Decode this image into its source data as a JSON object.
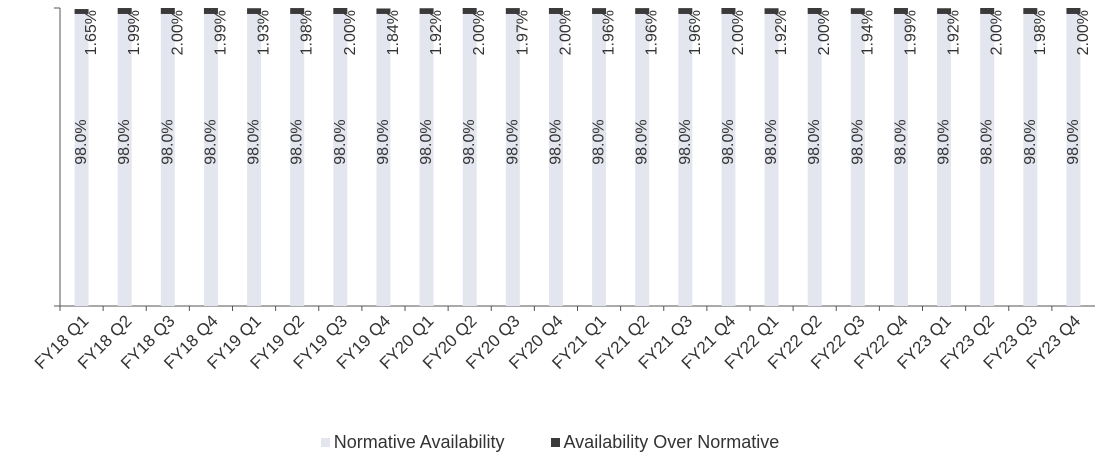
{
  "chart_data": {
    "type": "bar",
    "stacked": true,
    "categories": [
      "FY18 Q1",
      "FY18 Q2",
      "FY18 Q3",
      "FY18 Q4",
      "FY19 Q1",
      "FY19 Q2",
      "FY19 Q3",
      "FY19 Q4",
      "FY20 Q1",
      "FY20 Q2",
      "FY20 Q3",
      "FY20 Q4",
      "FY21 Q1",
      "FY21 Q2",
      "FY21 Q3",
      "FY21 Q4",
      "FY22 Q1",
      "FY22 Q2",
      "FY22 Q3",
      "FY22 Q4",
      "FY23 Q1",
      "FY23 Q2",
      "FY23 Q3",
      "FY23 Q4"
    ],
    "series": [
      {
        "name": "Normative Availability",
        "values": [
          98.0,
          98.0,
          98.0,
          98.0,
          98.0,
          98.0,
          98.0,
          98.0,
          98.0,
          98.0,
          98.0,
          98.0,
          98.0,
          98.0,
          98.0,
          98.0,
          98.0,
          98.0,
          98.0,
          98.0,
          98.0,
          98.0,
          98.0,
          98.0
        ],
        "labels": [
          "98.0%",
          "98.0%",
          "98.0%",
          "98.0%",
          "98.0%",
          "98.0%",
          "98.0%",
          "98.0%",
          "98.0%",
          "98.0%",
          "98.0%",
          "98.0%",
          "98.0%",
          "98.0%",
          "98.0%",
          "98.0%",
          "98.0%",
          "98.0%",
          "98.0%",
          "98.0%",
          "98.0%",
          "98.0%",
          "98.0%",
          "98.0%"
        ],
        "color": "#e3e6ee"
      },
      {
        "name": "Availability Over Normative",
        "values": [
          1.65,
          1.99,
          2.0,
          1.99,
          1.93,
          1.98,
          2.0,
          1.84,
          1.92,
          2.0,
          1.97,
          2.0,
          1.96,
          1.96,
          1.96,
          2.0,
          1.92,
          2.0,
          1.94,
          1.99,
          1.92,
          2.0,
          1.98,
          2.0
        ],
        "labels": [
          "1.65%",
          "1.99%",
          "2.00%",
          "1.99%",
          "1.93%",
          "1.98%",
          "2.00%",
          "1.84%",
          "1.92%",
          "2.00%",
          "1.97%",
          "2.00%",
          "1.96%",
          "1.96%",
          "1.96%",
          "2.00%",
          "1.92%",
          "2.00%",
          "1.94%",
          "1.99%",
          "1.92%",
          "2.00%",
          "1.98%",
          "2.00%"
        ],
        "color": "#3a3a3a"
      }
    ],
    "ylim": [
      0,
      100
    ],
    "grid": false,
    "legend_position": "bottom"
  }
}
